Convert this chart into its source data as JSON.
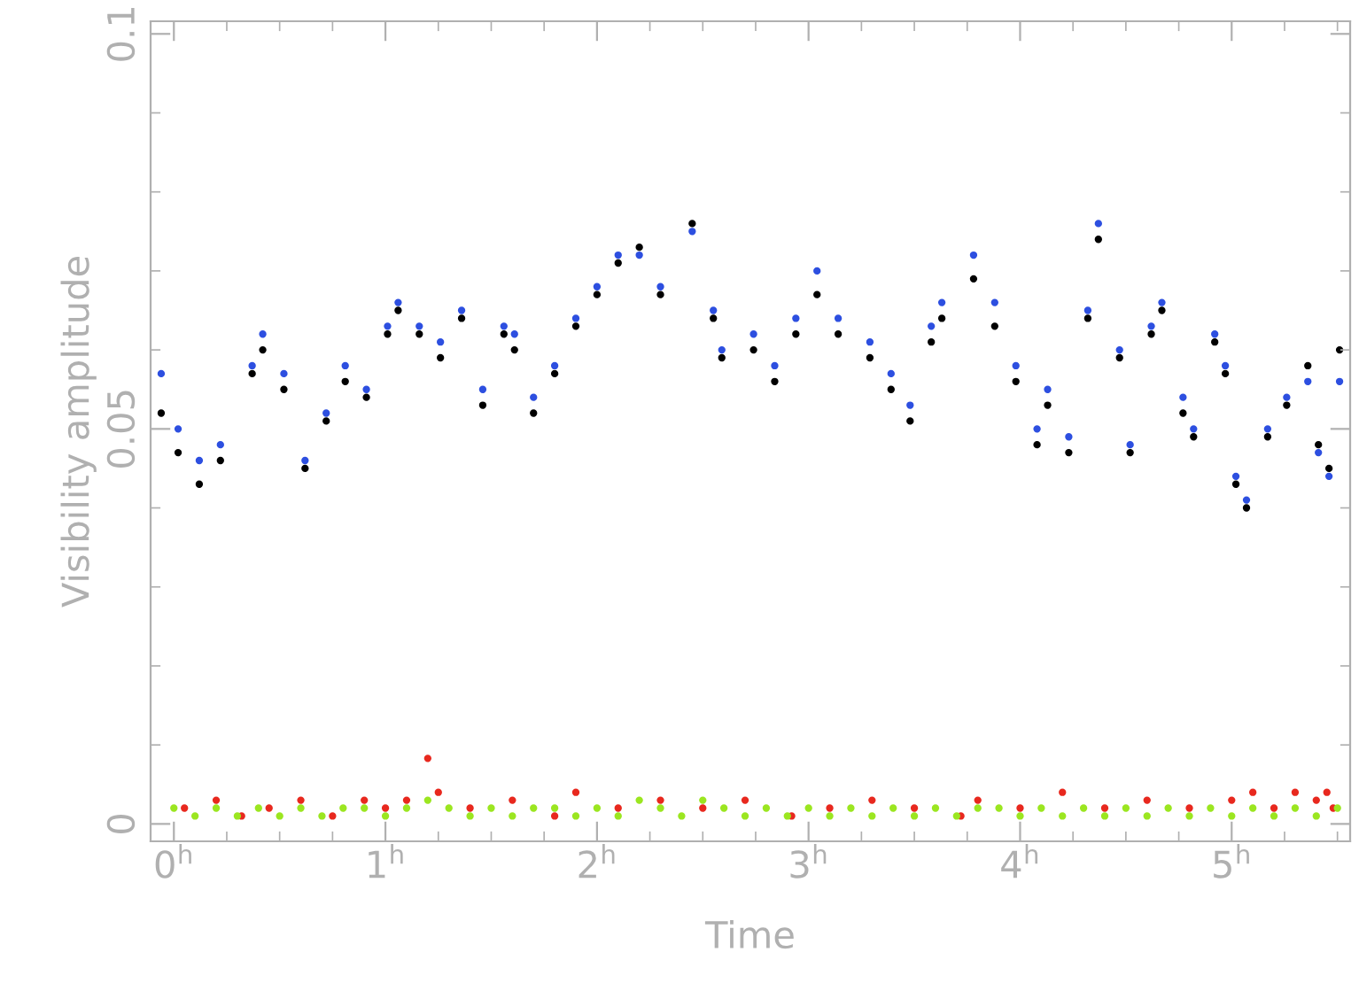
{
  "chart_data": {
    "type": "scatter",
    "xlabel": "Time",
    "ylabel": "Visibility amplitude",
    "xlim": [
      -0.11,
      5.56
    ],
    "ylim": [
      -0.0022,
      0.1016
    ],
    "xticks": [
      {
        "value": 0,
        "label": "0$^{h}$"
      },
      {
        "value": 1,
        "label": "1$^{h}$"
      },
      {
        "value": 2,
        "label": "2$^{h}$"
      },
      {
        "value": 3,
        "label": "3$^{h}$"
      },
      {
        "value": 4,
        "label": "4$^{h}$"
      },
      {
        "value": 5,
        "label": "5$^{h}$"
      }
    ],
    "yticks": [
      0,
      0.05,
      0.1
    ],
    "grid": false,
    "legend": false,
    "marker": "circle",
    "series": [
      {
        "color": "#000000",
        "x": [
          -0.06,
          0.02,
          0.12,
          0.22,
          0.37,
          0.42,
          0.52,
          0.62,
          0.72,
          0.81,
          0.91,
          1.01,
          1.06,
          1.16,
          1.26,
          1.36,
          1.46,
          1.56,
          1.61,
          1.7,
          1.8,
          1.9,
          2.0,
          2.1,
          2.2,
          2.3,
          2.45,
          2.55,
          2.59,
          2.74,
          2.84,
          2.94,
          3.04,
          3.14,
          3.29,
          3.39,
          3.48,
          3.58,
          3.63,
          3.78,
          3.88,
          3.98,
          4.08,
          4.13,
          4.23,
          4.32,
          4.37,
          4.47,
          4.52,
          4.62,
          4.67,
          4.77,
          4.82,
          4.92,
          4.97,
          5.02,
          5.07,
          5.17,
          5.26,
          5.36,
          5.41,
          5.46,
          5.51
        ],
        "values": [
          0.052,
          0.047,
          0.043,
          0.046,
          0.057,
          0.06,
          0.055,
          0.045,
          0.051,
          0.056,
          0.054,
          0.062,
          0.065,
          0.062,
          0.059,
          0.064,
          0.053,
          0.062,
          0.06,
          0.052,
          0.057,
          0.063,
          0.067,
          0.071,
          0.073,
          0.067,
          0.076,
          0.064,
          0.059,
          0.06,
          0.056,
          0.062,
          0.067,
          0.062,
          0.059,
          0.055,
          0.051,
          0.061,
          0.064,
          0.069,
          0.063,
          0.056,
          0.048,
          0.053,
          0.047,
          0.064,
          0.074,
          0.059,
          0.047,
          0.062,
          0.065,
          0.052,
          0.049,
          0.061,
          0.057,
          0.043,
          0.04,
          0.049,
          0.053,
          0.058,
          0.048,
          0.045,
          0.06
        ]
      },
      {
        "color": "#2d4fe0",
        "x": [
          -0.06,
          0.02,
          0.12,
          0.22,
          0.37,
          0.42,
          0.52,
          0.62,
          0.72,
          0.81,
          0.91,
          1.01,
          1.06,
          1.16,
          1.26,
          1.36,
          1.46,
          1.56,
          1.61,
          1.7,
          1.8,
          1.9,
          2.0,
          2.1,
          2.2,
          2.3,
          2.45,
          2.55,
          2.59,
          2.74,
          2.84,
          2.94,
          3.04,
          3.14,
          3.29,
          3.39,
          3.48,
          3.58,
          3.63,
          3.78,
          3.88,
          3.98,
          4.08,
          4.13,
          4.23,
          4.32,
          4.37,
          4.47,
          4.52,
          4.62,
          4.67,
          4.77,
          4.82,
          4.92,
          4.97,
          5.02,
          5.07,
          5.17,
          5.26,
          5.36,
          5.41,
          5.46,
          5.51
        ],
        "values": [
          0.057,
          0.05,
          0.046,
          0.048,
          0.058,
          0.062,
          0.057,
          0.046,
          0.052,
          0.058,
          0.055,
          0.063,
          0.066,
          0.063,
          0.061,
          0.065,
          0.055,
          0.063,
          0.062,
          0.054,
          0.058,
          0.064,
          0.068,
          0.072,
          0.072,
          0.068,
          0.075,
          0.065,
          0.06,
          0.062,
          0.058,
          0.064,
          0.07,
          0.064,
          0.061,
          0.057,
          0.053,
          0.063,
          0.066,
          0.072,
          0.066,
          0.058,
          0.05,
          0.055,
          0.049,
          0.065,
          0.076,
          0.06,
          0.048,
          0.063,
          0.066,
          0.054,
          0.05,
          0.062,
          0.058,
          0.044,
          0.041,
          0.05,
          0.054,
          0.056,
          0.047,
          0.044,
          0.056
        ]
      },
      {
        "color": "#e8281e",
        "x": [
          0.05,
          0.2,
          0.32,
          0.45,
          0.6,
          0.75,
          0.9,
          1.0,
          1.1,
          1.2,
          1.25,
          1.4,
          1.6,
          1.8,
          1.9,
          2.1,
          2.3,
          2.5,
          2.7,
          2.92,
          3.1,
          3.3,
          3.5,
          3.72,
          3.8,
          4.0,
          4.2,
          4.4,
          4.6,
          4.8,
          5.0,
          5.1,
          5.2,
          5.3,
          5.4,
          5.45,
          5.48
        ],
        "values": [
          0.002,
          0.003,
          0.001,
          0.002,
          0.003,
          0.001,
          0.003,
          0.002,
          0.003,
          0.0083,
          0.004,
          0.002,
          0.003,
          0.001,
          0.004,
          0.002,
          0.003,
          0.002,
          0.003,
          0.001,
          0.002,
          0.003,
          0.002,
          0.001,
          0.003,
          0.002,
          0.004,
          0.002,
          0.003,
          0.002,
          0.003,
          0.004,
          0.002,
          0.004,
          0.003,
          0.004,
          0.002
        ]
      },
      {
        "color": "#9be620",
        "x": [
          0.0,
          0.1,
          0.2,
          0.3,
          0.4,
          0.5,
          0.6,
          0.7,
          0.8,
          0.9,
          1.0,
          1.1,
          1.2,
          1.3,
          1.4,
          1.5,
          1.6,
          1.7,
          1.8,
          1.9,
          2.0,
          2.1,
          2.2,
          2.3,
          2.4,
          2.5,
          2.6,
          2.7,
          2.8,
          2.9,
          3.0,
          3.1,
          3.2,
          3.3,
          3.4,
          3.5,
          3.6,
          3.7,
          3.8,
          3.9,
          4.0,
          4.1,
          4.2,
          4.3,
          4.4,
          4.5,
          4.6,
          4.7,
          4.8,
          4.9,
          5.0,
          5.1,
          5.2,
          5.3,
          5.4,
          5.5
        ],
        "values": [
          0.002,
          0.001,
          0.002,
          0.001,
          0.002,
          0.001,
          0.002,
          0.001,
          0.002,
          0.002,
          0.001,
          0.002,
          0.003,
          0.002,
          0.001,
          0.002,
          0.001,
          0.002,
          0.002,
          0.001,
          0.002,
          0.001,
          0.003,
          0.002,
          0.001,
          0.003,
          0.002,
          0.001,
          0.002,
          0.001,
          0.002,
          0.001,
          0.002,
          0.001,
          0.002,
          0.001,
          0.002,
          0.001,
          0.002,
          0.002,
          0.001,
          0.002,
          0.001,
          0.002,
          0.001,
          0.002,
          0.001,
          0.002,
          0.001,
          0.002,
          0.001,
          0.002,
          0.001,
          0.002,
          0.001,
          0.002
        ]
      }
    ]
  }
}
